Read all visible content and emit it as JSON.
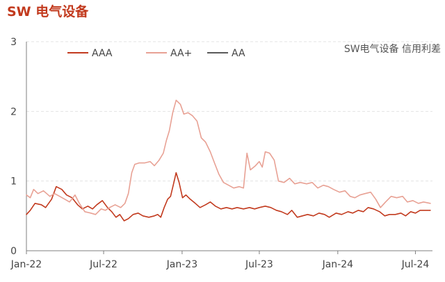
{
  "page": {
    "title": "SW 电气设备"
  },
  "chart_data": {
    "type": "line",
    "title": "",
    "annotation": "SW电气设备 信用利差",
    "xlabel": "",
    "ylabel": "",
    "ylim": [
      0,
      3
    ],
    "yticks": [
      0,
      1,
      2,
      3
    ],
    "xlim": [
      "2022-01-01",
      "2024-08-10"
    ],
    "xticks": [
      {
        "label": "Jan-22",
        "date": "2022-01-01"
      },
      {
        "label": "Jul-22",
        "date": "2022-07-01"
      },
      {
        "label": "Jan-23",
        "date": "2023-01-01"
      },
      {
        "label": "Jul-23",
        "date": "2023-07-01"
      },
      {
        "label": "Jan-24",
        "date": "2024-01-01"
      },
      {
        "label": "Jul-24",
        "date": "2024-07-01"
      }
    ],
    "grid": true,
    "legend_position": "top-left",
    "series": [
      {
        "name": "AAA",
        "color": "#c23a1e",
        "points": [
          [
            "2022-01-01",
            0.52
          ],
          [
            "2022-01-10",
            0.58
          ],
          [
            "2022-01-21",
            0.68
          ],
          [
            "2022-02-05",
            0.66
          ],
          [
            "2022-02-15",
            0.62
          ],
          [
            "2022-03-01",
            0.74
          ],
          [
            "2022-03-12",
            0.92
          ],
          [
            "2022-03-25",
            0.88
          ],
          [
            "2022-04-05",
            0.8
          ],
          [
            "2022-04-18",
            0.76
          ],
          [
            "2022-05-01",
            0.66
          ],
          [
            "2022-05-12",
            0.6
          ],
          [
            "2022-05-25",
            0.64
          ],
          [
            "2022-06-05",
            0.6
          ],
          [
            "2022-06-15",
            0.66
          ],
          [
            "2022-06-28",
            0.72
          ],
          [
            "2022-07-10",
            0.62
          ],
          [
            "2022-07-20",
            0.56
          ],
          [
            "2022-07-30",
            0.48
          ],
          [
            "2022-08-08",
            0.52
          ],
          [
            "2022-08-18",
            0.43
          ],
          [
            "2022-08-28",
            0.46
          ],
          [
            "2022-09-08",
            0.52
          ],
          [
            "2022-09-20",
            0.54
          ],
          [
            "2022-10-01",
            0.5
          ],
          [
            "2022-10-15",
            0.48
          ],
          [
            "2022-10-28",
            0.5
          ],
          [
            "2022-11-05",
            0.52
          ],
          [
            "2022-11-12",
            0.48
          ],
          [
            "2022-11-20",
            0.62
          ],
          [
            "2022-11-28",
            0.74
          ],
          [
            "2022-12-05",
            0.78
          ],
          [
            "2022-12-12",
            0.96
          ],
          [
            "2022-12-18",
            1.12
          ],
          [
            "2022-12-25",
            0.98
          ],
          [
            "2023-01-02",
            0.76
          ],
          [
            "2023-01-10",
            0.8
          ],
          [
            "2023-01-20",
            0.74
          ],
          [
            "2023-02-01",
            0.68
          ],
          [
            "2023-02-12",
            0.62
          ],
          [
            "2023-02-25",
            0.66
          ],
          [
            "2023-03-08",
            0.7
          ],
          [
            "2023-03-20",
            0.64
          ],
          [
            "2023-04-02",
            0.6
          ],
          [
            "2023-04-15",
            0.62
          ],
          [
            "2023-04-28",
            0.6
          ],
          [
            "2023-05-10",
            0.62
          ],
          [
            "2023-05-25",
            0.6
          ],
          [
            "2023-06-08",
            0.62
          ],
          [
            "2023-06-20",
            0.6
          ],
          [
            "2023-07-01",
            0.62
          ],
          [
            "2023-07-15",
            0.64
          ],
          [
            "2023-07-28",
            0.62
          ],
          [
            "2023-08-10",
            0.58
          ],
          [
            "2023-08-22",
            0.56
          ],
          [
            "2023-09-05",
            0.52
          ],
          [
            "2023-09-15",
            0.58
          ],
          [
            "2023-09-28",
            0.48
          ],
          [
            "2023-10-10",
            0.5
          ],
          [
            "2023-10-22",
            0.52
          ],
          [
            "2023-11-05",
            0.5
          ],
          [
            "2023-11-18",
            0.54
          ],
          [
            "2023-12-01",
            0.52
          ],
          [
            "2023-12-12",
            0.48
          ],
          [
            "2023-12-28",
            0.54
          ],
          [
            "2024-01-10",
            0.52
          ],
          [
            "2024-01-25",
            0.56
          ],
          [
            "2024-02-05",
            0.54
          ],
          [
            "2024-02-18",
            0.58
          ],
          [
            "2024-03-01",
            0.56
          ],
          [
            "2024-03-12",
            0.62
          ],
          [
            "2024-03-25",
            0.6
          ],
          [
            "2024-04-08",
            0.56
          ],
          [
            "2024-04-20",
            0.5
          ],
          [
            "2024-05-01",
            0.52
          ],
          [
            "2024-05-15",
            0.52
          ],
          [
            "2024-05-28",
            0.54
          ],
          [
            "2024-06-08",
            0.5
          ],
          [
            "2024-06-20",
            0.56
          ],
          [
            "2024-07-01",
            0.54
          ],
          [
            "2024-07-12",
            0.58
          ],
          [
            "2024-07-25",
            0.58
          ],
          [
            "2024-08-05",
            0.58
          ]
        ]
      },
      {
        "name": "AA+",
        "color": "#e8a194",
        "points": [
          [
            "2022-01-01",
            0.8
          ],
          [
            "2022-01-10",
            0.76
          ],
          [
            "2022-01-18",
            0.88
          ],
          [
            "2022-01-28",
            0.82
          ],
          [
            "2022-02-10",
            0.86
          ],
          [
            "2022-02-25",
            0.78
          ],
          [
            "2022-03-08",
            0.82
          ],
          [
            "2022-03-20",
            0.78
          ],
          [
            "2022-04-01",
            0.74
          ],
          [
            "2022-04-12",
            0.7
          ],
          [
            "2022-04-25",
            0.8
          ],
          [
            "2022-05-05",
            0.68
          ],
          [
            "2022-05-18",
            0.56
          ],
          [
            "2022-06-01",
            0.54
          ],
          [
            "2022-06-12",
            0.52
          ],
          [
            "2022-06-25",
            0.6
          ],
          [
            "2022-07-05",
            0.58
          ],
          [
            "2022-07-15",
            0.62
          ],
          [
            "2022-07-28",
            0.66
          ],
          [
            "2022-08-10",
            0.62
          ],
          [
            "2022-08-20",
            0.68
          ],
          [
            "2022-08-28",
            0.82
          ],
          [
            "2022-09-05",
            1.12
          ],
          [
            "2022-09-12",
            1.24
          ],
          [
            "2022-09-22",
            1.26
          ],
          [
            "2022-10-05",
            1.26
          ],
          [
            "2022-10-18",
            1.28
          ],
          [
            "2022-10-28",
            1.22
          ],
          [
            "2022-11-08",
            1.3
          ],
          [
            "2022-11-18",
            1.4
          ],
          [
            "2022-11-25",
            1.58
          ],
          [
            "2022-12-02",
            1.72
          ],
          [
            "2022-12-10",
            1.98
          ],
          [
            "2022-12-18",
            2.16
          ],
          [
            "2022-12-28",
            2.1
          ],
          [
            "2023-01-05",
            1.96
          ],
          [
            "2023-01-15",
            1.98
          ],
          [
            "2023-01-25",
            1.94
          ],
          [
            "2023-02-05",
            1.86
          ],
          [
            "2023-02-15",
            1.62
          ],
          [
            "2023-02-25",
            1.56
          ],
          [
            "2023-03-08",
            1.42
          ],
          [
            "2023-03-18",
            1.26
          ],
          [
            "2023-03-28",
            1.1
          ],
          [
            "2023-04-08",
            0.98
          ],
          [
            "2023-04-20",
            0.94
          ],
          [
            "2023-05-02",
            0.9
          ],
          [
            "2023-05-15",
            0.92
          ],
          [
            "2023-05-25",
            0.9
          ],
          [
            "2023-06-02",
            1.4
          ],
          [
            "2023-06-10",
            1.16
          ],
          [
            "2023-06-22",
            1.22
          ],
          [
            "2023-07-01",
            1.28
          ],
          [
            "2023-07-08",
            1.2
          ],
          [
            "2023-07-15",
            1.42
          ],
          [
            "2023-07-25",
            1.4
          ],
          [
            "2023-08-05",
            1.3
          ],
          [
            "2023-08-15",
            1.0
          ],
          [
            "2023-08-28",
            0.98
          ],
          [
            "2023-09-10",
            1.04
          ],
          [
            "2023-09-22",
            0.96
          ],
          [
            "2023-10-05",
            0.98
          ],
          [
            "2023-10-20",
            0.96
          ],
          [
            "2023-11-02",
            0.98
          ],
          [
            "2023-11-15",
            0.9
          ],
          [
            "2023-11-28",
            0.94
          ],
          [
            "2023-12-10",
            0.92
          ],
          [
            "2023-12-22",
            0.88
          ],
          [
            "2024-01-05",
            0.84
          ],
          [
            "2024-01-18",
            0.86
          ],
          [
            "2024-01-30",
            0.78
          ],
          [
            "2024-02-10",
            0.76
          ],
          [
            "2024-02-22",
            0.8
          ],
          [
            "2024-03-05",
            0.82
          ],
          [
            "2024-03-18",
            0.84
          ],
          [
            "2024-03-30",
            0.74
          ],
          [
            "2024-04-10",
            0.62
          ],
          [
            "2024-04-22",
            0.7
          ],
          [
            "2024-05-05",
            0.78
          ],
          [
            "2024-05-18",
            0.76
          ],
          [
            "2024-06-01",
            0.78
          ],
          [
            "2024-06-12",
            0.7
          ],
          [
            "2024-06-25",
            0.72
          ],
          [
            "2024-07-08",
            0.68
          ],
          [
            "2024-07-20",
            0.7
          ],
          [
            "2024-08-05",
            0.68
          ]
        ]
      },
      {
        "name": "AA",
        "color": "#595959",
        "points": []
      }
    ]
  }
}
